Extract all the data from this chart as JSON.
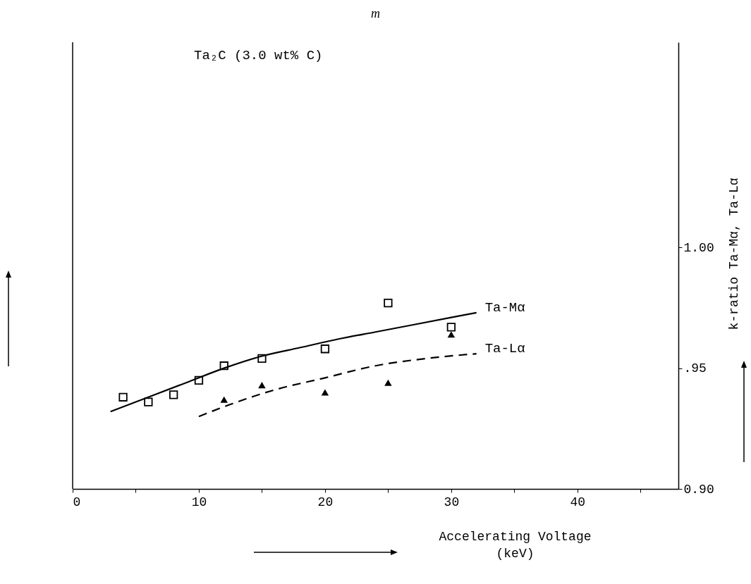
{
  "chart_data": {
    "type": "scatter",
    "title": "m",
    "xlabel": "Accelerating Voltage\n(keV)",
    "ylabel": "k-ratio Ta-Mα, Ta-Lα",
    "annotations": [
      "Ta₂C (3.0 wt% C)"
    ],
    "xlim": [
      0,
      48
    ],
    "xticks": [
      0,
      {
        "value": 5,
        "label": null
      },
      10,
      {
        "value": 15,
        "label": null
      },
      20,
      {
        "value": 25,
        "label": null
      },
      30,
      {
        "value": 35,
        "label": null
      },
      40,
      {
        "value": 45,
        "label": null
      }
    ],
    "ylim": [
      0.9,
      1.085
    ],
    "yticks": [
      {
        "value": 0.9,
        "label": "0.90"
      },
      {
        "value": 0.95,
        "label": ".95"
      },
      {
        "value": 1.0,
        "label": "1.00"
      }
    ],
    "grid": false,
    "series": [
      {
        "marker": "square",
        "color": "#000000",
        "x": [
          4,
          6,
          8,
          10,
          12,
          15,
          20,
          25,
          30
        ],
        "values": [
          0.938,
          0.936,
          0.939,
          0.945,
          0.951,
          0.954,
          0.958,
          0.977,
          0.967
        ]
      },
      {
        "marker": "triangle",
        "color": "#000000",
        "x": [
          12,
          15,
          20,
          25,
          30
        ],
        "values": [
          0.937,
          0.943,
          0.94,
          0.944,
          0.964
        ]
      },
      {
        "type": "line",
        "name": "Ta-Mα",
        "line_style": "solid",
        "color": "#000000",
        "x": [
          3,
          6,
          9,
          12,
          15,
          18,
          21,
          24,
          27,
          30,
          32
        ],
        "values": [
          0.932,
          0.938,
          0.944,
          0.95,
          0.955,
          0.9585,
          0.962,
          0.965,
          0.968,
          0.971,
          0.973
        ]
      },
      {
        "type": "line",
        "name": "Ta-Lα",
        "line_style": "dashed",
        "color": "#000000",
        "x": [
          10,
          12.5,
          16,
          20,
          24,
          28,
          32
        ],
        "values": [
          0.93,
          0.935,
          0.941,
          0.946,
          0.951,
          0.954,
          0.956
        ]
      }
    ]
  }
}
